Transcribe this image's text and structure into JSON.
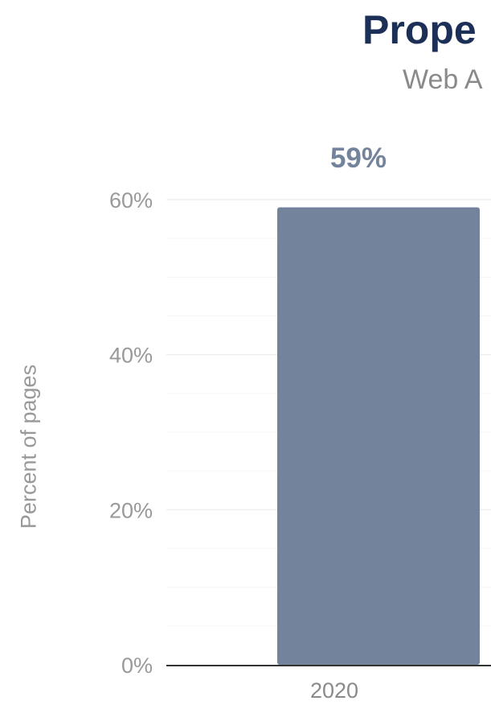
{
  "chart_data": {
    "type": "bar",
    "title": "Prope",
    "subtitle": "Web A",
    "ylabel": "Percent of pages",
    "categories": [
      "2020"
    ],
    "series": [
      {
        "values": [
          59
        ],
        "data_labels": [
          "59%"
        ]
      }
    ],
    "ylim": [
      0,
      60
    ],
    "y_ticks": [
      {
        "value": 0,
        "label": "0%"
      },
      {
        "value": 20,
        "label": "20%"
      },
      {
        "value": 40,
        "label": "40%"
      },
      {
        "value": 60,
        "label": "60%"
      }
    ],
    "grid": true,
    "colors": {
      "bar": "#73839c",
      "data_label": "#73839c",
      "title": "#1c2f56",
      "subtitle": "#8a8a8a",
      "tick_label": "#999999",
      "grid": "#eeeeee",
      "axis": "#333333"
    }
  }
}
